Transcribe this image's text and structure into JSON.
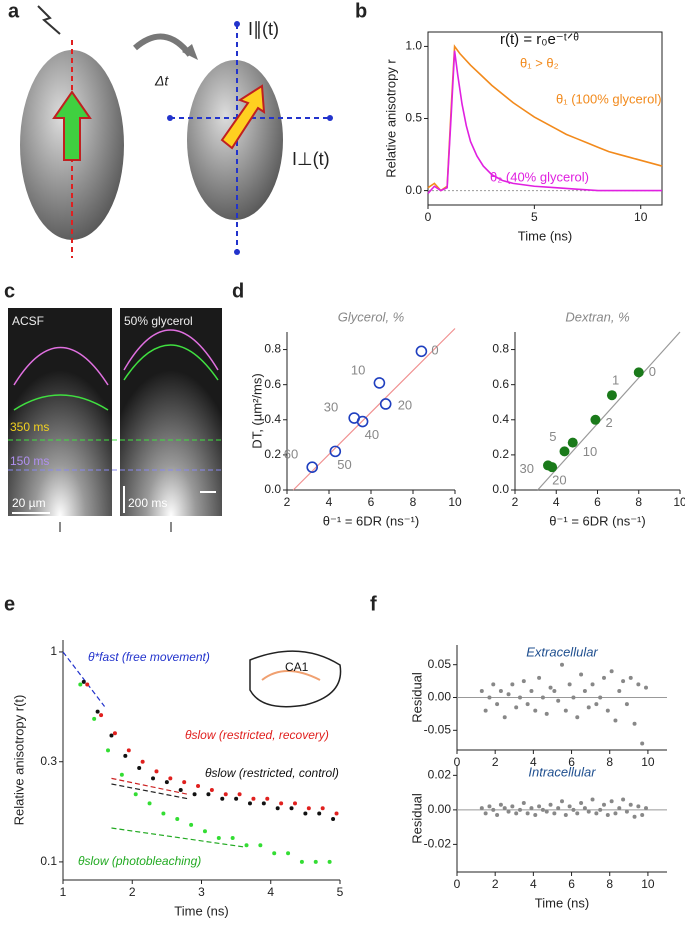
{
  "panel_labels": [
    "a",
    "b",
    "c",
    "d",
    "e",
    "f"
  ],
  "panel_a": {
    "time_step": "Δt",
    "parallel": "I∥(t)",
    "perpendicular": "I⊥(t)"
  },
  "panel_c": {
    "left_title": "ACSF",
    "right_title": "50% glycerol",
    "line_350": "350 ms",
    "line_150": "150 ms",
    "scale_space": "20 µm",
    "scale_time": "200 ms"
  },
  "chart_data": [
    {
      "type": "line",
      "xlabel": "Time (ns)",
      "ylabel": "Relative anisotropy r",
      "xlim": [
        0,
        11
      ],
      "ylim": [
        -0.1,
        1.1
      ],
      "xticks": [
        0,
        5,
        10
      ],
      "yticks": [
        {
          "value": 0,
          "label": "0.0"
        },
        {
          "value": 0.5,
          "label": "0.5"
        },
        {
          "value": 1,
          "label": "1.0"
        }
      ],
      "annotations": [
        "r(t) = r₀e⁻ᵗᐟᶿ",
        "θ₁ > θ₂",
        "θ₁ (100% glycerol)",
        "θ₂ (40% glycerol)"
      ],
      "series": [
        {
          "color": "#f28a1c",
          "x": [
            0,
            0.3,
            0.6,
            0.9,
            1.1,
            1.25,
            1.5,
            2,
            2.5,
            3,
            3.5,
            4,
            4.5,
            5,
            5.5,
            6,
            6.5,
            7,
            7.5,
            8,
            8.5,
            9,
            9.5,
            10,
            10.5,
            11
          ],
          "values": [
            0.02,
            0.05,
            0,
            0.03,
            0.6,
            1,
            0.95,
            0.87,
            0.8,
            0.73,
            0.67,
            0.61,
            0.56,
            0.51,
            0.47,
            0.43,
            0.39,
            0.36,
            0.33,
            0.3,
            0.27,
            0.25,
            0.23,
            0.21,
            0.19,
            0.17
          ]
        },
        {
          "color": "#e020e0",
          "x": [
            0,
            0.3,
            0.6,
            0.9,
            1.1,
            1.25,
            1.4,
            1.6,
            1.8,
            2,
            2.3,
            2.6,
            3,
            3.5,
            4,
            5,
            6,
            7,
            8,
            9,
            10,
            11
          ],
          "values": [
            -0.02,
            0.03,
            0,
            0.02,
            0.55,
            0.97,
            0.8,
            0.6,
            0.45,
            0.34,
            0.24,
            0.17,
            0.11,
            0.07,
            0.05,
            0.03,
            0.02,
            0.01,
            0,
            0,
            0,
            0
          ]
        }
      ]
    },
    {
      "type": "scatter",
      "title": "Glycerol, %",
      "xlabel": "θ⁻¹ = 6DR (ns⁻¹)",
      "ylabel": "DT, (µm²/ms)",
      "xlim": [
        2,
        10
      ],
      "ylim": [
        0,
        0.9
      ],
      "xticks": [
        2,
        4,
        6,
        8,
        10
      ],
      "yticks": [
        {
          "value": 0,
          "label": "0.0"
        },
        {
          "value": 0.2,
          "label": "0.2"
        },
        {
          "value": 0.4,
          "label": "0.4"
        },
        {
          "value": 0.6,
          "label": "0.6"
        },
        {
          "value": 0.8,
          "label": "0.8"
        }
      ],
      "fits": [
        {
          "color": "#f09090",
          "x": [
            2.3,
            10
          ],
          "values": [
            0,
            0.92
          ]
        }
      ],
      "series": [
        {
          "marker": "open",
          "color": "#1f3fbf",
          "x": [
            8.4,
            6.4,
            6.7,
            5.2,
            5.6,
            4.3,
            3.2
          ],
          "values": [
            0.79,
            0.61,
            0.49,
            0.41,
            0.39,
            0.22,
            0.13
          ],
          "point_labels": [
            "0",
            "10",
            "20",
            "30",
            "40",
            "50",
            "60"
          ]
        }
      ]
    },
    {
      "type": "scatter",
      "title": "Dextran, %",
      "xlabel": "θ⁻¹ = 6DR (ns⁻¹)",
      "xlim": [
        2,
        10
      ],
      "ylim": [
        0,
        0.9
      ],
      "xticks": [
        2,
        4,
        6,
        8,
        10
      ],
      "yticks": [
        {
          "value": 0,
          "label": "0.0"
        },
        {
          "value": 0.2,
          "label": "0.2"
        },
        {
          "value": 0.4,
          "label": "0.4"
        },
        {
          "value": 0.6,
          "label": "0.6"
        },
        {
          "value": 0.8,
          "label": "0.8"
        }
      ],
      "fits": [
        {
          "color": "#999999",
          "x": [
            3.1,
            10
          ],
          "values": [
            0,
            0.9
          ]
        }
      ],
      "series": [
        {
          "marker": "filled",
          "color": "#1a7a1a",
          "x": [
            8,
            6.7,
            5.9,
            4.8,
            4.4,
            3.8,
            3.6
          ],
          "values": [
            0.67,
            0.54,
            0.4,
            0.27,
            0.22,
            0.13,
            0.14
          ],
          "point_labels": [
            "0",
            "1",
            "2",
            "10",
            "5",
            "20",
            "30"
          ]
        }
      ]
    },
    {
      "type": "scatter",
      "ylog": true,
      "xlabel": "Time (ns)",
      "ylabel": "Relative anisotropy r(t)",
      "xlim": [
        1,
        5
      ],
      "ylim": [
        0.082,
        1.14
      ],
      "xticks": [
        1,
        2,
        3,
        4,
        5
      ],
      "yticks": [
        0.1,
        0.3,
        1
      ],
      "annotations": [
        "θ*fast (free movement)",
        "θslow (restricted, recovery)",
        "θslow (restricted, control)",
        "θslow (photobleaching)",
        "CA1"
      ],
      "fits": [
        {
          "color": "#2233cc",
          "x": [
            1,
            1.6
          ],
          "values": [
            1,
            0.55
          ]
        },
        {
          "color": "#cc2222",
          "x": [
            1.7,
            2.8
          ],
          "values": [
            0.25,
            0.21
          ]
        },
        {
          "color": "#222222",
          "x": [
            1.7,
            2.8
          ],
          "values": [
            0.235,
            0.2
          ]
        },
        {
          "color": "#22aa22",
          "x": [
            1.7,
            3.6
          ],
          "values": [
            0.145,
            0.118
          ]
        }
      ],
      "series": [
        {
          "marker": "dot",
          "color": "#33dd33",
          "x": [
            1.25,
            1.45,
            1.65,
            1.85,
            2.05,
            2.25,
            2.45,
            2.65,
            2.85,
            3.05,
            3.25,
            3.45,
            3.65,
            3.85,
            4.05,
            4.25,
            4.45,
            4.65,
            4.85
          ],
          "values": [
            0.7,
            0.48,
            0.34,
            0.26,
            0.21,
            0.19,
            0.17,
            0.16,
            0.15,
            0.14,
            0.13,
            0.13,
            0.12,
            0.12,
            0.11,
            0.11,
            0.1,
            0.1,
            0.1
          ]
        },
        {
          "marker": "dot",
          "color": "#111111",
          "x": [
            1.3,
            1.5,
            1.7,
            1.9,
            2.1,
            2.3,
            2.5,
            2.7,
            2.9,
            3.1,
            3.3,
            3.5,
            3.7,
            3.9,
            4.1,
            4.3,
            4.5,
            4.7,
            4.9
          ],
          "values": [
            0.72,
            0.52,
            0.4,
            0.32,
            0.28,
            0.25,
            0.24,
            0.22,
            0.21,
            0.21,
            0.2,
            0.2,
            0.19,
            0.19,
            0.18,
            0.18,
            0.17,
            0.17,
            0.16
          ]
        },
        {
          "marker": "dot",
          "color": "#e0201e",
          "x": [
            1.35,
            1.55,
            1.75,
            1.95,
            2.15,
            2.35,
            2.55,
            2.75,
            2.95,
            3.15,
            3.35,
            3.55,
            3.75,
            3.95,
            4.15,
            4.35,
            4.55,
            4.75,
            4.95
          ],
          "values": [
            0.7,
            0.5,
            0.41,
            0.34,
            0.3,
            0.27,
            0.25,
            0.24,
            0.23,
            0.22,
            0.21,
            0.21,
            0.2,
            0.2,
            0.19,
            0.19,
            0.18,
            0.18,
            0.17
          ]
        }
      ]
    },
    {
      "type": "scatter",
      "title": "Extracellular",
      "ylabel": "Residual",
      "xlim": [
        0,
        11
      ],
      "ylim": [
        -0.08,
        0.08
      ],
      "xticks": [
        0,
        2,
        4,
        6,
        8,
        10
      ],
      "yticks": [
        -0.05,
        {
          "value": 0,
          "label": "0.00"
        },
        0.05
      ],
      "series": [
        {
          "marker": "dot",
          "color": "#888888",
          "x": [
            1.3,
            1.5,
            1.7,
            1.9,
            2.1,
            2.3,
            2.5,
            2.7,
            2.9,
            3.1,
            3.3,
            3.5,
            3.7,
            3.9,
            4.1,
            4.3,
            4.5,
            4.7,
            4.9,
            5.1,
            5.3,
            5.5,
            5.7,
            5.9,
            6.1,
            6.3,
            6.5,
            6.7,
            6.9,
            7.1,
            7.3,
            7.5,
            7.7,
            7.9,
            8.1,
            8.3,
            8.5,
            8.7,
            8.9,
            9.1,
            9.3,
            9.5,
            9.7,
            9.9
          ],
          "values": [
            0.01,
            -0.02,
            0,
            0.02,
            -0.01,
            0.01,
            -0.03,
            0.005,
            0.02,
            -0.015,
            0,
            0.025,
            -0.01,
            0.01,
            -0.02,
            0.03,
            0,
            -0.025,
            0.015,
            0.01,
            -0.005,
            0.05,
            -0.02,
            0.02,
            0,
            -0.03,
            0.035,
            0.01,
            -0.015,
            0.02,
            -0.01,
            0,
            0.03,
            -0.02,
            0.04,
            -0.035,
            0.01,
            0.025,
            -0.01,
            0.03,
            -0.04,
            0.02,
            -0.07,
            0.015
          ]
        }
      ]
    },
    {
      "type": "scatter",
      "title": "Intracellular",
      "xlabel": "Time (ns)",
      "ylabel": "Residual",
      "xlim": [
        0,
        11
      ],
      "ylim": [
        -0.036,
        0.026
      ],
      "xticks": [
        0,
        2,
        4,
        6,
        8,
        10
      ],
      "yticks": [
        -0.02,
        {
          "value": 0,
          "label": "0.00"
        },
        0.02
      ],
      "series": [
        {
          "marker": "dot",
          "color": "#888888",
          "x": [
            1.3,
            1.5,
            1.7,
            1.9,
            2.1,
            2.3,
            2.5,
            2.7,
            2.9,
            3.1,
            3.3,
            3.5,
            3.7,
            3.9,
            4.1,
            4.3,
            4.5,
            4.7,
            4.9,
            5.1,
            5.3,
            5.5,
            5.7,
            5.9,
            6.1,
            6.3,
            6.5,
            6.7,
            6.9,
            7.1,
            7.3,
            7.5,
            7.7,
            7.9,
            8.1,
            8.3,
            8.5,
            8.7,
            8.9,
            9.1,
            9.3,
            9.5,
            9.7,
            9.9
          ],
          "values": [
            0.001,
            -0.002,
            0.002,
            0,
            -0.003,
            0.003,
            0.001,
            -0.001,
            0.002,
            -0.002,
            0,
            0.004,
            -0.002,
            0.001,
            -0.003,
            0.002,
            0,
            -0.001,
            0.003,
            -0.002,
            0.001,
            0.005,
            -0.003,
            0.002,
            0,
            -0.002,
            0.004,
            0.001,
            -0.001,
            0.006,
            -0.002,
            0,
            0.003,
            -0.003,
            0.005,
            -0.002,
            0.001,
            0.006,
            -0.001,
            0.003,
            -0.004,
            0.002,
            -0.003,
            0.001
          ]
        }
      ]
    }
  ]
}
